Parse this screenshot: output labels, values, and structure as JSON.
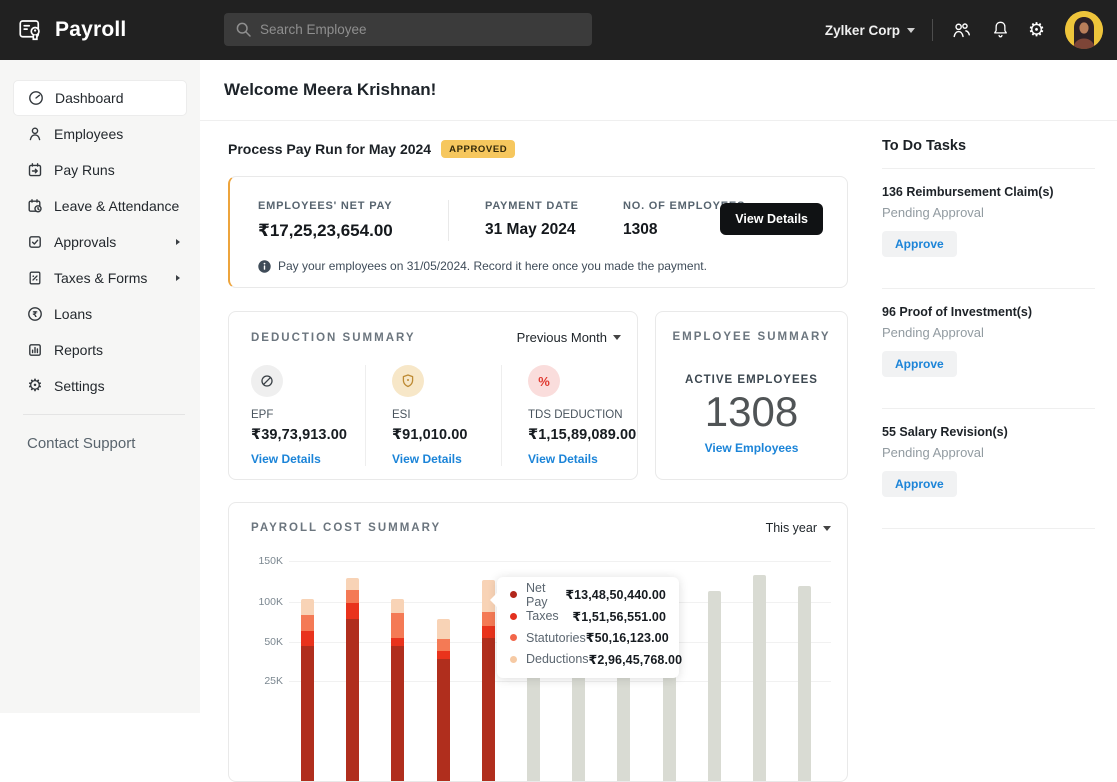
{
  "colors": {
    "topbar_bg": "#212121",
    "sidebar_bg": "#f6f6f5",
    "accent_blue": "#1b84d8",
    "badge_bg": "#f6c75e",
    "payrun_card_accent": "#eda43c",
    "inactive_bar": "#d9dbd3"
  },
  "topbar": {
    "app_name": "Payroll",
    "search_placeholder": "Search Employee",
    "org_name": "Zylker Corp",
    "icons": [
      "payroll-logo-icon",
      "search-icon",
      "users-icon",
      "bell-icon",
      "gear-icon",
      "avatar"
    ]
  },
  "sidebar": {
    "items": [
      {
        "label": "Dashboard",
        "icon": "dashboard-icon",
        "active": true
      },
      {
        "label": "Employees",
        "icon": "employees-icon"
      },
      {
        "label": "Pay Runs",
        "icon": "pay-runs-icon"
      },
      {
        "label": "Leave & Attendance",
        "icon": "leave-attendance-icon"
      },
      {
        "label": "Approvals",
        "icon": "approvals-icon",
        "has_submenu": true
      },
      {
        "label": "Taxes & Forms",
        "icon": "taxes-forms-icon",
        "has_submenu": true
      },
      {
        "label": "Loans",
        "icon": "loans-icon"
      },
      {
        "label": "Reports",
        "icon": "reports-icon"
      },
      {
        "label": "Settings",
        "icon": "settings-icon"
      }
    ],
    "contact_support": "Contact Support"
  },
  "main": {
    "welcome": "Welcome Meera Krishnan!",
    "payrun": {
      "title": "Process Pay Run for May 2024",
      "badge": "APPROVED",
      "stats": [
        {
          "label": "EMPLOYEES' NET PAY",
          "value": "₹17,25,23,654.00"
        },
        {
          "label": "PAYMENT DATE",
          "value": "31 May 2024"
        },
        {
          "label": "NO. OF EMPLOYEES",
          "value": "1308"
        }
      ],
      "view_details": "View Details",
      "note": "Pay your employees on 31/05/2024. Record it here once you made the payment."
    },
    "deduction": {
      "title": "DEDUCTION SUMMARY",
      "period": "Previous Month",
      "items": [
        {
          "icon": "epf-circle-slash-icon",
          "icon_bg": "#efefef",
          "label": "EPF",
          "value": "₹39,73,913.00",
          "link": "View Details"
        },
        {
          "icon": "esi-shield-icon",
          "icon_bg": "#f7e7c8",
          "label": "ESI",
          "value": "₹91,010.00",
          "link": "View Details"
        },
        {
          "icon": "tds-percent-icon",
          "icon_bg": "#fadddc",
          "label": "TDS DEDUCTION",
          "value": "₹1,15,89,089.00",
          "link": "View Details"
        }
      ]
    },
    "employee": {
      "title": "EMPLOYEE SUMMARY",
      "label": "ACTIVE EMPLOYEES",
      "count": "1308",
      "link": "View Employees"
    }
  },
  "chart_data": {
    "type": "bar",
    "stacked": true,
    "title": "PAYROLL COST SUMMARY",
    "period": "This year",
    "ylabel": "",
    "y_ticks": [
      "150K",
      "100K",
      "50K",
      "25K"
    ],
    "ylim": [
      0,
      150
    ],
    "units": "K",
    "grid": true,
    "series": [
      {
        "name": "Net Pay",
        "color": "#b02e1d"
      },
      {
        "name": "Taxes",
        "color": "#e9331c"
      },
      {
        "name": "Statutories",
        "color": "#f47a55"
      },
      {
        "name": "Deductions",
        "color": "#f8d3b6"
      }
    ],
    "inactive_color": "#d9dbd3",
    "hovered_index": 4,
    "bars": [
      {
        "type": "stacked",
        "values": [
          60,
          16,
          17,
          17
        ]
      },
      {
        "type": "stacked",
        "values": [
          89,
          17,
          13,
          13
        ]
      },
      {
        "type": "stacked",
        "values": [
          61,
          8,
          26,
          15
        ]
      },
      {
        "type": "stacked",
        "values": [
          47,
          8,
          13,
          21
        ]
      },
      {
        "type": "stacked",
        "values": [
          69,
          13,
          14,
          34
        ]
      },
      {
        "type": "flat",
        "total": 112
      },
      {
        "type": "flat",
        "total": 108
      },
      {
        "type": "flat",
        "total": 115
      },
      {
        "type": "flat",
        "total": 110
      },
      {
        "type": "flat",
        "total": 118
      },
      {
        "type": "flat",
        "total": 135
      },
      {
        "type": "flat",
        "total": 124
      }
    ],
    "tooltip": {
      "rows": [
        {
          "label": "Net Pay",
          "value": "₹13,48,50,440.00",
          "color": "#b2271b"
        },
        {
          "label": "Taxes",
          "value": "₹1,51,56,551.00",
          "color": "#e3301e"
        },
        {
          "label": "Statutories",
          "value": "₹50,16,123.00",
          "color": "#f2664a"
        },
        {
          "label": "Deductions",
          "value": "₹2,96,45,768.00",
          "color": "#f6caa4"
        }
      ]
    }
  },
  "todo": {
    "title": "To Do Tasks",
    "tasks": [
      {
        "title": "136 Reimbursement Claim(s)",
        "subtitle": "Pending Approval",
        "action": "Approve"
      },
      {
        "title": "96 Proof of Investment(s)",
        "subtitle": "Pending Approval",
        "action": "Approve"
      },
      {
        "title": "55 Salary Revision(s)",
        "subtitle": "Pending Approval",
        "action": "Approve"
      }
    ]
  }
}
